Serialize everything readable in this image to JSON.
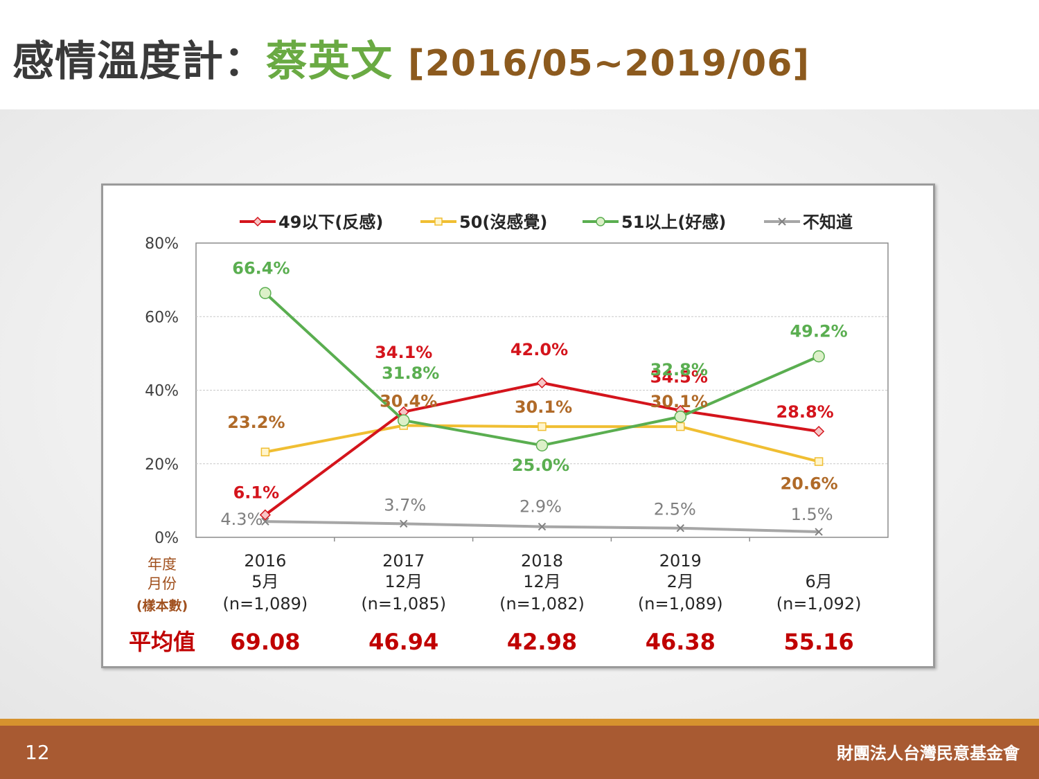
{
  "title": {
    "part1": "感情溫度計：",
    "part2": "蔡英文",
    "part3": "[2016/05~2019/06]"
  },
  "footer": {
    "page_number": "12",
    "organization": "財團法人台灣民意基金會"
  },
  "colors": {
    "red": "#d4141c",
    "yellow": "#f0be32",
    "green": "#5aae50",
    "gray": "#a6a6a6",
    "brown_label": "#b06a28"
  },
  "chart_data": {
    "type": "line",
    "categories": [
      "2016 5月",
      "2017 12月",
      "2018 12月",
      "2019 2月",
      "6月"
    ],
    "x_labels": [
      {
        "year": "2016",
        "month": "5月",
        "n": "(n=1,089)"
      },
      {
        "year": "2017",
        "month": "12月",
        "n": "(n=1,085)"
      },
      {
        "year": "2018",
        "month": "12月",
        "n": "(n=1,082)"
      },
      {
        "year": "2019",
        "month": "2月",
        "n": "(n=1,089)"
      },
      {
        "year": "",
        "month": "6月",
        "n": "(n=1,092)"
      }
    ],
    "row_headers": {
      "year": "年度",
      "month": "月份",
      "sample": "(樣本數)"
    },
    "average_label": "平均值",
    "averages": [
      "69.08",
      "46.94",
      "42.98",
      "46.38",
      "55.16"
    ],
    "yticks": [
      "0%",
      "20%",
      "40%",
      "60%",
      "80%"
    ],
    "ylim": [
      0,
      80
    ],
    "grid": true,
    "legend_position": "top",
    "series": [
      {
        "name": "49以下(反感)",
        "color": "#d4141c",
        "marker": "diamond",
        "values": [
          6.1,
          34.1,
          42.0,
          34.5,
          28.8
        ],
        "labels": [
          "6.1%",
          "34.1%",
          "42.0%",
          "34.5%",
          "28.8%"
        ]
      },
      {
        "name": "50(沒感覺)",
        "color": "#f0be32",
        "marker": "square",
        "values": [
          23.2,
          30.4,
          30.1,
          30.1,
          20.6
        ],
        "labels": [
          "23.2%",
          "30.4%",
          "30.1%",
          "30.1%",
          "20.6%"
        ]
      },
      {
        "name": "51以上(好感)",
        "color": "#5aae50",
        "marker": "circle",
        "values": [
          66.4,
          31.8,
          25.0,
          32.8,
          49.2
        ],
        "labels": [
          "66.4%",
          "31.8%",
          "25.0%",
          "32.8%",
          "49.2%"
        ]
      },
      {
        "name": "不知道",
        "color": "#a6a6a6",
        "marker": "x",
        "values": [
          4.3,
          3.7,
          2.9,
          2.5,
          1.5
        ],
        "labels": [
          "4.3%",
          "3.7%",
          "2.9%",
          "2.5%",
          "1.5%"
        ]
      }
    ]
  }
}
